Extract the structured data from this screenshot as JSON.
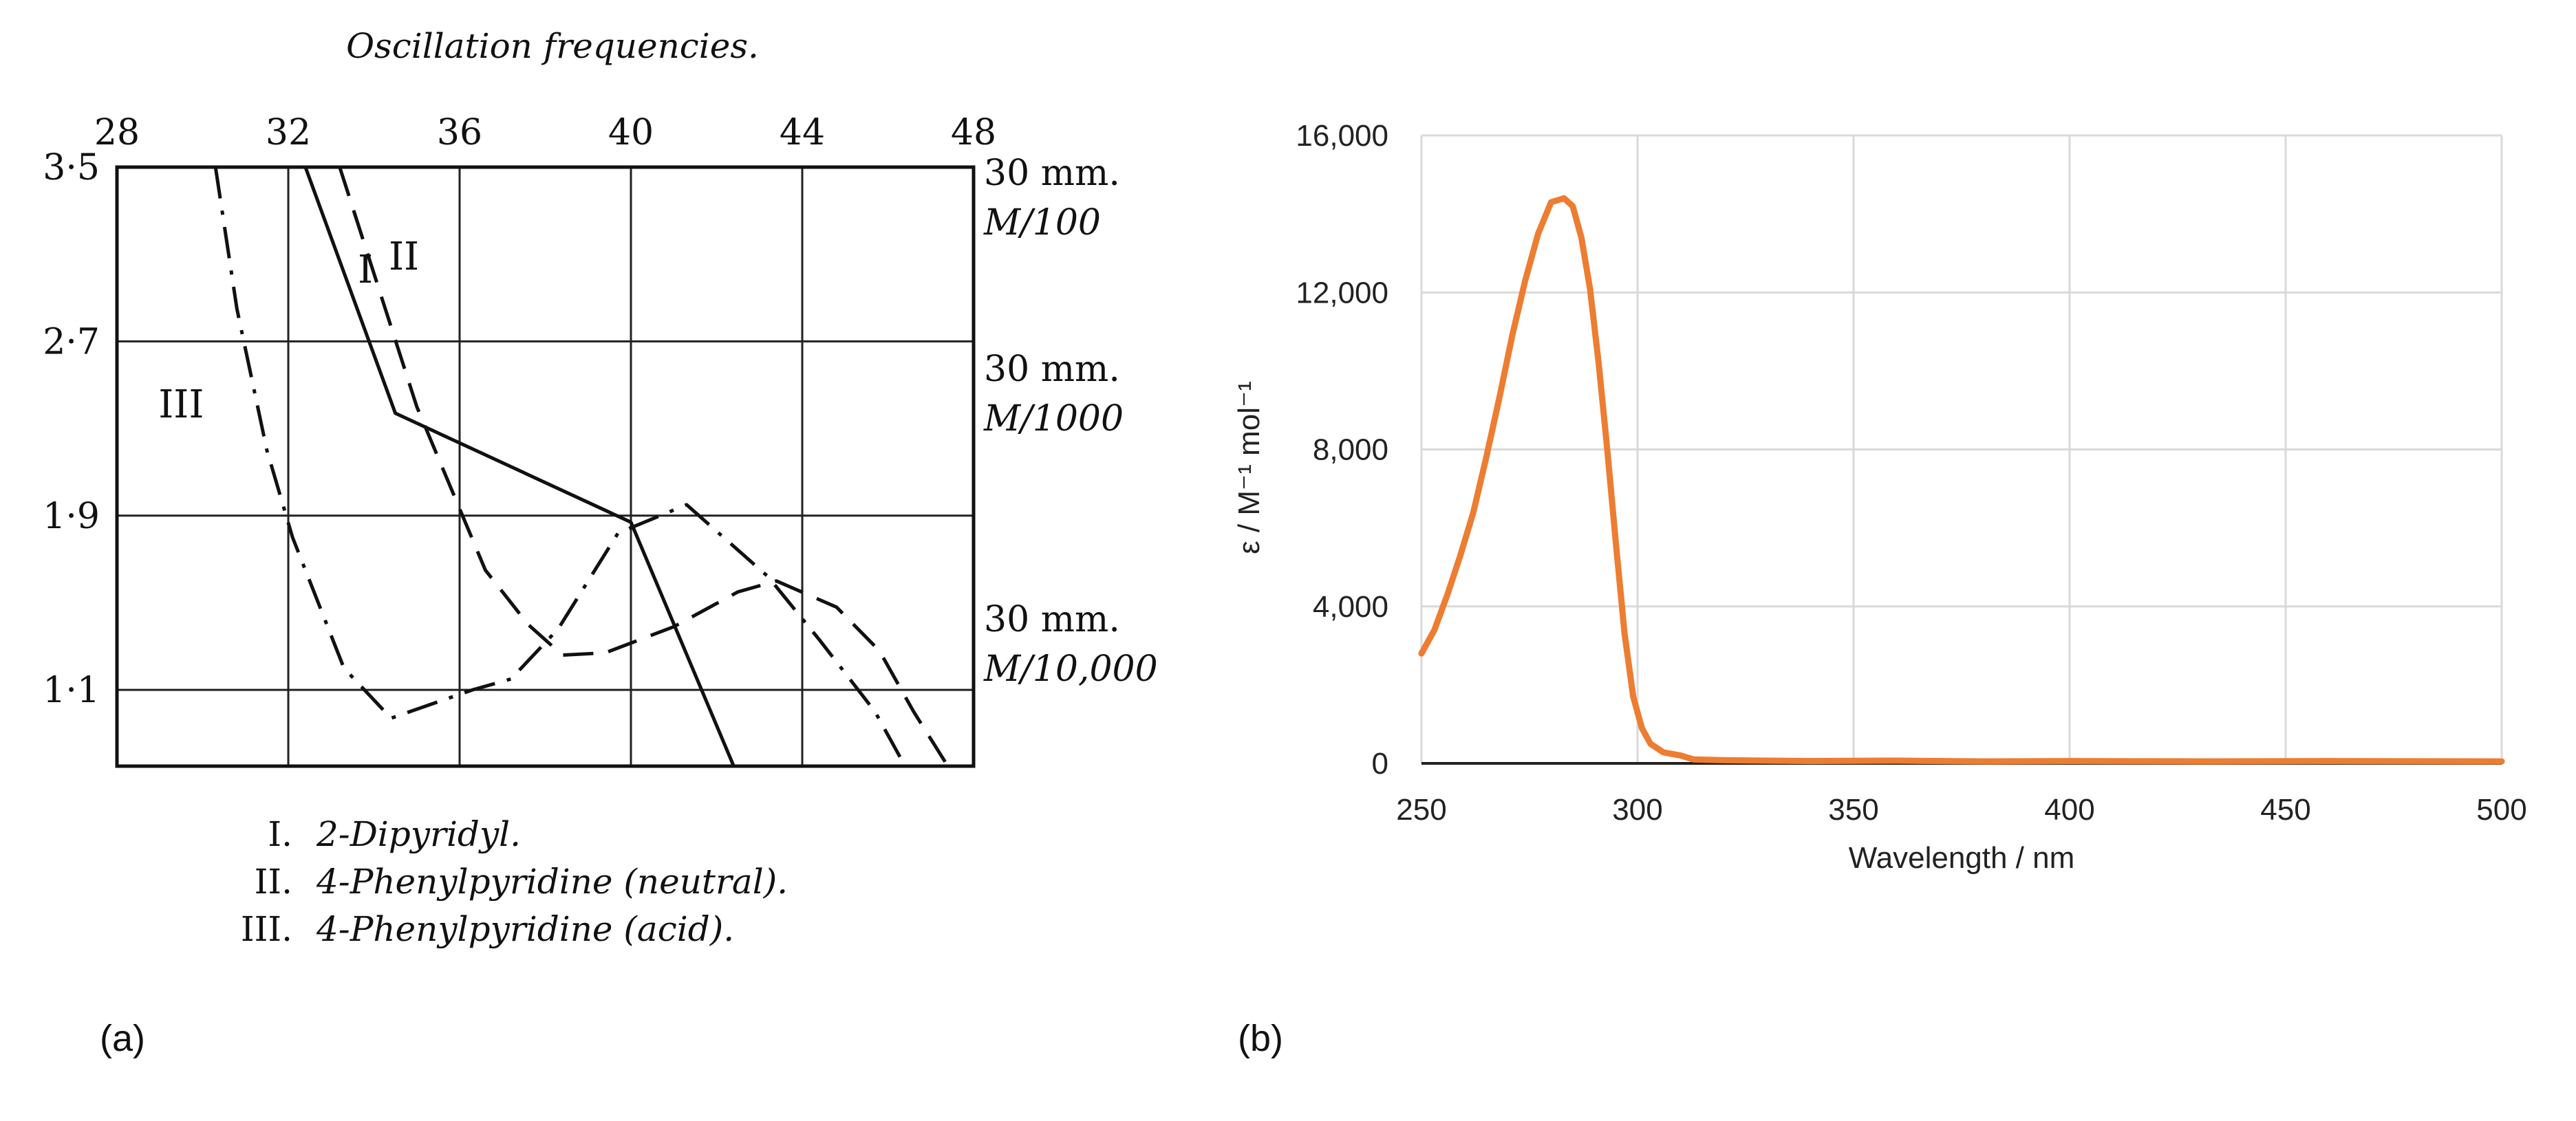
{
  "chart_data": [
    {
      "id": "a",
      "type": "line",
      "panel_label": "(a)",
      "title": "Oscillation frequencies.",
      "x_ticks": [
        "28",
        "32",
        "36",
        "40",
        "44",
        "48"
      ],
      "xlim": [
        28,
        48
      ],
      "y_ticks": [
        "3·5",
        "2·7",
        "1·9",
        "1·1"
      ],
      "ylim": [
        0.75,
        3.5
      ],
      "right_annotations": [
        {
          "line1": "30 mm.",
          "line2": "M/100",
          "y": 3.45
        },
        {
          "line1": "30 mm.",
          "line2": "M/1000",
          "y": 2.55
        },
        {
          "line1": "30 mm.",
          "line2": "M/10,000",
          "y": 1.4
        }
      ],
      "series": [
        {
          "name": "I",
          "label_text": "I",
          "style": "solid",
          "label_pos": {
            "x": 33.8,
            "y": 2.97
          },
          "points": [
            [
              32.4,
              3.5
            ],
            [
              34.5,
              2.37
            ],
            [
              40,
              1.87
            ],
            [
              42.4,
              0.75
            ]
          ]
        },
        {
          "name": "II",
          "label_text": "II",
          "style": "dashed",
          "label_pos": {
            "x": 34.7,
            "y": 3.03
          },
          "points": [
            [
              33.2,
              3.5
            ],
            [
              35,
              2.4
            ],
            [
              36.6,
              1.65
            ],
            [
              37.6,
              1.4
            ],
            [
              38.4,
              1.26
            ],
            [
              39.4,
              1.27
            ],
            [
              41,
              1.39
            ],
            [
              42.5,
              1.55
            ],
            [
              43.4,
              1.6
            ],
            [
              44.8,
              1.48
            ],
            [
              45.8,
              1.28
            ],
            [
              46.6,
              1.0
            ],
            [
              47.4,
              0.75
            ]
          ]
        },
        {
          "name": "III",
          "label_text": "III",
          "style": "dashdot",
          "label_pos": {
            "x": 29.5,
            "y": 2.35
          },
          "points": [
            [
              30.3,
              3.5
            ],
            [
              30.8,
              2.85
            ],
            [
              31.5,
              2.2
            ],
            [
              32.1,
              1.8
            ],
            [
              33.3,
              1.2
            ],
            [
              34.4,
              0.97
            ],
            [
              36.3,
              1.1
            ],
            [
              37.2,
              1.15
            ],
            [
              38.3,
              1.38
            ],
            [
              39.7,
              1.82
            ],
            [
              41.3,
              1.95
            ],
            [
              43.2,
              1.62
            ],
            [
              44.4,
              1.33
            ],
            [
              45.7,
              1.0
            ],
            [
              46.4,
              0.75
            ]
          ]
        }
      ],
      "legend": [
        {
          "numeral": "I.",
          "text": "2-Dipyridyl."
        },
        {
          "numeral": "II.",
          "text": "4-Phenylpyridine (neutral)."
        },
        {
          "numeral": "III.",
          "text": "4-Phenylpyridine (acid)."
        }
      ]
    },
    {
      "id": "b",
      "type": "line",
      "panel_label": "(b)",
      "title": "",
      "xlabel": "Wavelength / nm",
      "ylabel": "ε / M⁻¹ mol⁻¹",
      "xlim": [
        250,
        500
      ],
      "ylim": [
        0,
        16000
      ],
      "x_ticks": [
        250,
        300,
        350,
        400,
        450,
        500
      ],
      "y_ticks": [
        0,
        4000,
        8000,
        12000,
        16000
      ],
      "y_tick_labels": [
        "0",
        "4,000",
        "8,000",
        "12,000",
        "16,000"
      ],
      "grid": true,
      "color": "#ED7D31",
      "series": [
        {
          "name": "absorption",
          "x": [
            250,
            253,
            256,
            259,
            262,
            265,
            268,
            271,
            274,
            277,
            280,
            283,
            285,
            287,
            289,
            291,
            293,
            295,
            297,
            299,
            301,
            303,
            306,
            310,
            313,
            320,
            340,
            360,
            380,
            400,
            430,
            460,
            500
          ],
          "y": [
            2800,
            3400,
            4300,
            5300,
            6400,
            7800,
            9300,
            10900,
            12300,
            13500,
            14300,
            14400,
            14200,
            13400,
            12100,
            10200,
            8000,
            5600,
            3300,
            1700,
            900,
            500,
            280,
            200,
            100,
            80,
            60,
            70,
            50,
            60,
            50,
            60,
            50
          ]
        }
      ]
    }
  ]
}
